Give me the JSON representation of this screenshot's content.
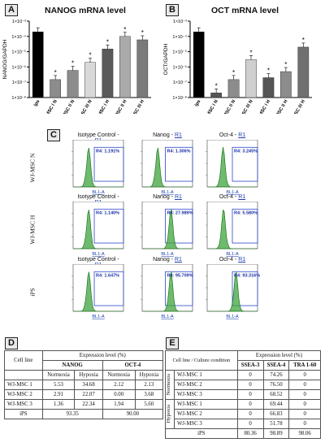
{
  "panels": {
    "A": {
      "label": "A",
      "title": "NANOG mRNA level",
      "ylabel": "NANOG/GAPDH",
      "yticks": [
        "1×10⁻³",
        "1×10⁻⁴",
        "1×10⁻⁵",
        "1×10⁻⁶",
        "1×10⁻⁷",
        "1×10⁻⁸"
      ]
    },
    "B": {
      "label": "B",
      "title": "OCT mRNA level",
      "ylabel": "OCT/GAPDH",
      "yticks": [
        "1×10⁻³",
        "1×10⁻⁴",
        "1×10⁻⁵",
        "1×10⁻⁶",
        "1×10⁻⁷",
        "1×10⁻⁸"
      ]
    },
    "C": {
      "label": "C",
      "rows": [
        "WJ-MSC N",
        "WJ-MSC H",
        "iPS"
      ],
      "cols": [
        "Isotype Control - ",
        "Nanog - ",
        "Oct-4 - "
      ],
      "gate": "R1",
      "xaxis": "BL1-A",
      "values": [
        [
          "R4: 1.191%",
          "R4: 1.306%",
          "R4: 3.245%"
        ],
        [
          "R4: 1.140%",
          "R4: 27.989%",
          "R4: 5.580%"
        ],
        [
          "R4: 1.647%",
          "R4: 95.709%",
          "R4: 93.316%"
        ]
      ]
    },
    "D": {
      "label": "D",
      "header": "Expression level (%)",
      "cellline": "Cell line",
      "groups": [
        "NANOG",
        "OCT-4"
      ],
      "subs": [
        "Normoxia",
        "Hypoxia",
        "Normoxia",
        "Hypoxia"
      ],
      "rows": [
        {
          "name": "WJ-MSC 1",
          "v": [
            "5.53",
            "34.68",
            "2.12",
            "2.13"
          ]
        },
        {
          "name": "WJ-MSC 2",
          "v": [
            "2.91",
            "22.07",
            "0.00",
            "3.68"
          ]
        },
        {
          "name": "WJ-MSC 3",
          "v": [
            "1.36",
            "22.34",
            "1.94",
            "5.60"
          ]
        }
      ],
      "ips": {
        "name": "iPS",
        "nanog": "93.35",
        "oct": "90.00"
      }
    },
    "E": {
      "label": "E",
      "header": "Expression level (%)",
      "cellline": "Cell line / Culture condition",
      "cols": [
        "SSEA-3",
        "SSEA-4",
        "TRA 1-60"
      ],
      "cond": [
        "Normoxia",
        "Hypoxia"
      ],
      "rows": [
        {
          "name": "WJ-MSC 1",
          "v": [
            "0",
            "74.26",
            "0"
          ]
        },
        {
          "name": "WJ-MSC 2",
          "v": [
            "0",
            "76.50",
            "0"
          ]
        },
        {
          "name": "WJ-MSC 3",
          "v": [
            "0",
            "68.52",
            "0"
          ]
        },
        {
          "name": "WJ-MSC 1",
          "v": [
            "0",
            "69.44",
            "0"
          ]
        },
        {
          "name": "WJ-MSC 2",
          "v": [
            "0",
            "66.83",
            "0"
          ]
        },
        {
          "name": "WJ-MSC 3",
          "v": [
            "0",
            "51.78",
            "0"
          ]
        }
      ],
      "ips": {
        "name": "iPS",
        "v": [
          "80.36",
          "98.89",
          "98.06"
        ]
      }
    }
  },
  "chart_data": [
    {
      "type": "bar",
      "title": "NANOG mRNA level",
      "ylabel": "NANOG/GAPDH",
      "yscale": "log",
      "categories": [
        "Ips",
        "WJMSC I N",
        "WJMSC II N",
        "WJMSC III N",
        "WJMSC I H",
        "WJMSC II H",
        "WJMSC III H"
      ],
      "values": [
        0.0002,
        1.5e-07,
        6e-07,
        2e-06,
        1.5e-05,
        0.0001,
        6e-05
      ],
      "colors": [
        "#000000",
        "#8c8c8c",
        "#8c8c8c",
        "#d9d9d9",
        "#5a5a5a",
        "#aaaaaa",
        "#7a7a7a"
      ],
      "significant": [
        false,
        true,
        true,
        true,
        true,
        true,
        true
      ]
    },
    {
      "type": "bar",
      "title": "OCT mRNA level",
      "ylabel": "OCT/GAPDH",
      "yscale": "log",
      "categories": [
        "Ips",
        "WJMSC I N",
        "WJMSC II N",
        "WJMSC III N",
        "WJMSC I H",
        "WJMSC II H",
        "WJMSC III H"
      ],
      "values": [
        0.0002,
        2e-08,
        1.5e-07,
        3e-06,
        2e-07,
        5e-07,
        2e-05
      ],
      "colors": [
        "#000000",
        "#555555",
        "#8c8c8c",
        "#cfcfcf",
        "#555555",
        "#8c8c8c",
        "#707070"
      ],
      "significant": [
        false,
        true,
        true,
        true,
        true,
        true,
        true
      ]
    }
  ]
}
